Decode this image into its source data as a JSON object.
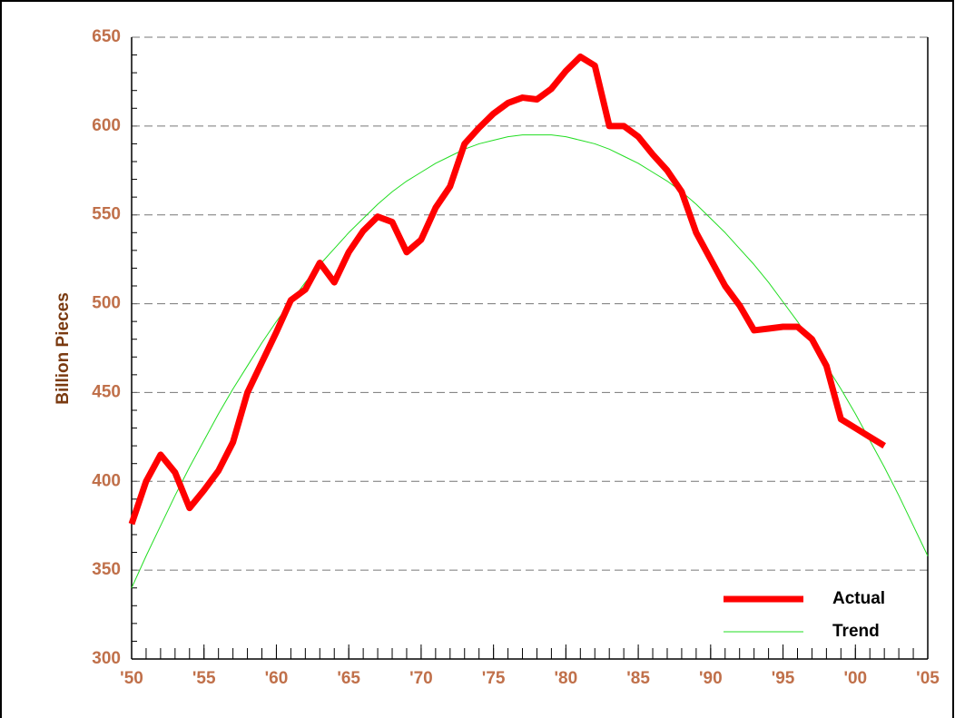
{
  "chart_data": {
    "type": "line",
    "y_label": "Billion Pieces",
    "xlim": [
      1950,
      2005
    ],
    "xticks": [
      {
        "value": 1950,
        "label": "'50"
      },
      {
        "value": 1955,
        "label": "'55"
      },
      {
        "value": 1960,
        "label": "'60"
      },
      {
        "value": 1965,
        "label": "'65"
      },
      {
        "value": 1970,
        "label": "'70"
      },
      {
        "value": 1975,
        "label": "'75"
      },
      {
        "value": 1980,
        "label": "'80"
      },
      {
        "value": 1985,
        "label": "'85"
      },
      {
        "value": 1990,
        "label": "'90"
      },
      {
        "value": 1995,
        "label": "'95"
      },
      {
        "value": 2000,
        "label": "'00"
      },
      {
        "value": 2005,
        "label": "'05"
      }
    ],
    "ylim": [
      300,
      650
    ],
    "yticks": [
      300,
      350,
      400,
      450,
      500,
      550,
      600,
      650
    ],
    "grid": true,
    "legend": "lower right",
    "series": [
      {
        "name": "Actual",
        "color": "#ff0000",
        "width": 7,
        "x": [
          1950,
          1951,
          1952,
          1953,
          1954,
          1955,
          1956,
          1957,
          1958,
          1959,
          1960,
          1961,
          1962,
          1963,
          1964,
          1965,
          1966,
          1967,
          1968,
          1969,
          1970,
          1971,
          1972,
          1973,
          1974,
          1975,
          1976,
          1977,
          1978,
          1979,
          1980,
          1981,
          1982,
          1983,
          1984,
          1985,
          1986,
          1987,
          1988,
          1989,
          1990,
          1991,
          1992,
          1993,
          1994,
          1995,
          1996,
          1997,
          1998,
          1999,
          2000,
          2001,
          2002
        ],
        "values": [
          376,
          400,
          415,
          405,
          385,
          395,
          406,
          422,
          450,
          467,
          484,
          502,
          508,
          523,
          512,
          529,
          541,
          549,
          546,
          529,
          536,
          554,
          566,
          590,
          599,
          607,
          613,
          616,
          615,
          621,
          631,
          639,
          634,
          600,
          600,
          594,
          584,
          575,
          563,
          540,
          525,
          510,
          499,
          485,
          486,
          487,
          487,
          480,
          465,
          435,
          430,
          425,
          420
        ]
      },
      {
        "name": "Trend",
        "color": "#22dd22",
        "width": 1,
        "x": [
          1950,
          1951,
          1952,
          1953,
          1954,
          1955,
          1956,
          1957,
          1958,
          1959,
          1960,
          1961,
          1962,
          1963,
          1964,
          1965,
          1966,
          1967,
          1968,
          1969,
          1970,
          1971,
          1972,
          1973,
          1974,
          1975,
          1976,
          1977,
          1978,
          1979,
          1980,
          1981,
          1982,
          1983,
          1984,
          1985,
          1986,
          1987,
          1988,
          1989,
          1990,
          1991,
          1992,
          1993,
          1994,
          1995,
          1996,
          1997,
          1998,
          1999,
          2000,
          2001,
          2002,
          2003,
          2004,
          2005
        ],
        "values": [
          340,
          358,
          375,
          392,
          408,
          423,
          438,
          452,
          465,
          478,
          490,
          501,
          512,
          522,
          531,
          540,
          548,
          556,
          563,
          569,
          574,
          579,
          583,
          587,
          590,
          592,
          594,
          595,
          595,
          595,
          594,
          592,
          590,
          587,
          583,
          579,
          574,
          569,
          563,
          556,
          548,
          540,
          531,
          522,
          512,
          501,
          490,
          478,
          465,
          452,
          438,
          423,
          408,
          392,
          375,
          358
        ]
      }
    ]
  }
}
